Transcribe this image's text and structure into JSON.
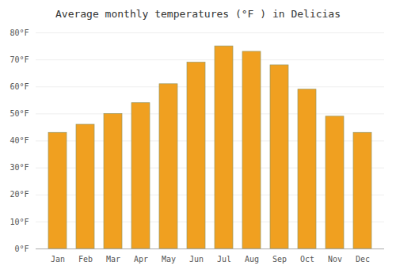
{
  "chart_data": {
    "type": "bar",
    "title": "Average monthly temperatures (°F ) in Delicias",
    "categories": [
      "Jan",
      "Feb",
      "Mar",
      "Apr",
      "May",
      "Jun",
      "Jul",
      "Aug",
      "Sep",
      "Oct",
      "Nov",
      "Dec"
    ],
    "values": [
      43,
      46,
      50,
      54,
      61,
      69,
      75,
      73,
      68,
      59,
      49,
      43
    ],
    "color": "#F0A020",
    "ylim": [
      0,
      80
    ],
    "yticks": [
      {
        "value": 0,
        "label": "0°F"
      },
      {
        "value": 10,
        "label": "10°F"
      },
      {
        "value": 20,
        "label": "20°F"
      },
      {
        "value": 30,
        "label": "30°F"
      },
      {
        "value": 40,
        "label": "40°F"
      },
      {
        "value": 50,
        "label": "50°F"
      },
      {
        "value": 60,
        "label": "60°F"
      },
      {
        "value": 70,
        "label": "70°F"
      },
      {
        "value": 80,
        "label": "80°F"
      }
    ],
    "grid": true
  }
}
